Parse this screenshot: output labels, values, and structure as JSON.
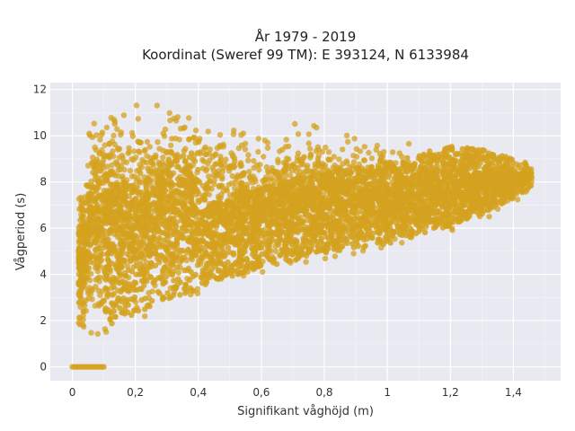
{
  "chart_data": {
    "type": "scatter",
    "title_line1": "År 1979 - 2019",
    "title_line2": "Koordinat (Sweref 99 TM): E 393124, N 6133984",
    "xlabel": "Signifikant våghöjd (m)",
    "ylabel": "Vågperiod (s)",
    "xlim": [
      -0.07,
      1.55
    ],
    "ylim": [
      -0.6,
      12.3
    ],
    "x_ticks": [
      0,
      0.2,
      0.4,
      0.6,
      0.8,
      1,
      1.2,
      1.4
    ],
    "x_tick_labels": [
      "0",
      "0,2",
      "0,4",
      "0,6",
      "0,8",
      "1",
      "1,2",
      "1,4"
    ],
    "y_ticks": [
      0,
      2,
      4,
      6,
      8,
      10,
      12
    ],
    "y_tick_labels": [
      "0",
      "2",
      "4",
      "6",
      "8",
      "10",
      "12"
    ],
    "grid": true,
    "marker_color": "#d4a21e",
    "plot_background": "#e9e9f1",
    "envelope": {
      "x": [
        0.02,
        0.05,
        0.1,
        0.2,
        0.3,
        0.4,
        0.5,
        0.6,
        0.7,
        0.8,
        0.9,
        1.0,
        1.1,
        1.2,
        1.3,
        1.4,
        1.46
      ],
      "y_min": [
        1.1,
        1.2,
        1.4,
        2.0,
        2.6,
        3.1,
        3.6,
        4.0,
        4.3,
        4.6,
        4.8,
        5.0,
        5.4,
        5.8,
        6.3,
        7.0,
        7.6
      ],
      "y_max": [
        7.5,
        10.5,
        11.7,
        11.5,
        11.3,
        11.0,
        10.5,
        10.0,
        10.7,
        10.3,
        9.9,
        9.8,
        9.6,
        9.6,
        9.4,
        9.0,
        8.9
      ]
    },
    "zero_period_points": {
      "x_range": [
        0.0,
        0.1
      ],
      "y": 0
    }
  }
}
